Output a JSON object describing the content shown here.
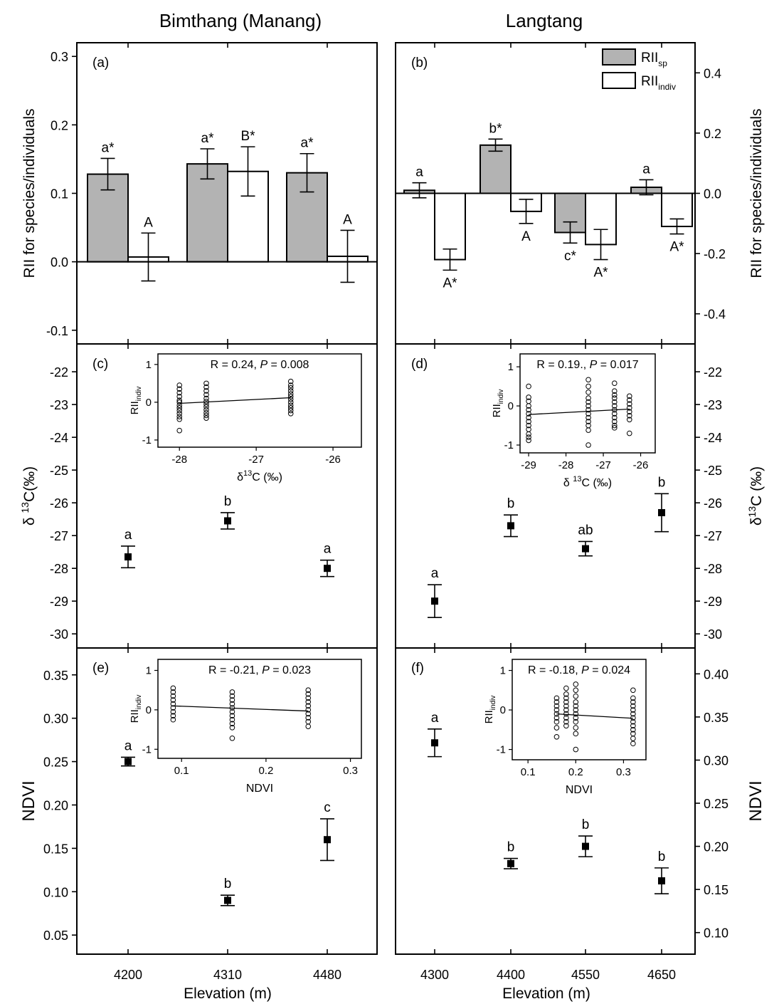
{
  "columns": {
    "left_title": "Bimthang (Manang)",
    "right_title": "Langtang"
  },
  "xlabel": "Elevation (m)",
  "legend": {
    "sp": {
      "main": "RII",
      "sub": "sp"
    },
    "indiv": {
      "main": "RII",
      "sub": "indiv"
    },
    "sp_color": "#b3b3b3",
    "indiv_color": "#ffffff"
  },
  "chart_data": [
    {
      "panel": "(a)",
      "type": "bar",
      "ylabel": "RII for species/individuals",
      "ylim": [
        -0.12,
        0.32
      ],
      "yticks": [
        0.3,
        0.2,
        0.1,
        0.0,
        -0.1
      ],
      "ytick_labels": [
        "0.3",
        "0.2",
        "0.1",
        "0.0",
        "-0.1"
      ],
      "categories": [
        "4200",
        "4310",
        "4480"
      ],
      "series": [
        {
          "name": "RII_sp",
          "values": [
            0.128,
            0.143,
            0.13
          ],
          "errors": [
            0.023,
            0.022,
            0.028
          ],
          "letters": [
            "a*",
            "a*",
            "a*"
          ]
        },
        {
          "name": "RII_indiv",
          "values": [
            0.007,
            0.132,
            0.008
          ],
          "errors": [
            0.035,
            0.036,
            0.038
          ],
          "letters": [
            "A",
            "B*",
            "A"
          ]
        }
      ]
    },
    {
      "panel": "(b)",
      "type": "bar",
      "ylabel": "RII for species/individuals",
      "ylim": [
        -0.5,
        0.5
      ],
      "yticks": [
        0.4,
        0.2,
        0.0,
        -0.2,
        -0.4
      ],
      "ytick_labels": [
        "0.4",
        "0.2",
        "0.0",
        "-0.2",
        "-0.4"
      ],
      "categories": [
        "4300",
        "4400",
        "4550",
        "4650"
      ],
      "series": [
        {
          "name": "RII_sp",
          "values": [
            0.01,
            0.16,
            -0.13,
            0.02
          ],
          "errors": [
            0.025,
            0.02,
            0.035,
            0.025
          ],
          "letters": [
            "a",
            "b*",
            "c*",
            "a"
          ]
        },
        {
          "name": "RII_indiv",
          "values": [
            -0.22,
            -0.06,
            -0.17,
            -0.11
          ],
          "errors": [
            0.035,
            0.04,
            0.05,
            0.025
          ],
          "letters": [
            "A*",
            "A",
            "A*",
            "A*"
          ]
        }
      ]
    },
    {
      "panel": "(c)",
      "type": "scatter",
      "ylabel": {
        "pre": "δ ",
        "sup": "13",
        "post": "C(‰)"
      },
      "ylim": [
        -30.43,
        -21.15
      ],
      "yticks": [
        -22,
        -23,
        -24,
        -25,
        -26,
        -27,
        -28,
        -29,
        -30
      ],
      "ytick_labels": [
        "-22",
        "-23",
        "-24",
        "-25",
        "-26",
        "-27",
        "-28",
        "-29",
        "-30"
      ],
      "categories": [
        "4200",
        "4310",
        "4480"
      ],
      "values": [
        -27.65,
        -26.55,
        -28.0
      ],
      "errors": [
        0.33,
        0.25,
        0.25
      ],
      "letters": [
        "a",
        "b",
        "a"
      ],
      "inset": {
        "type": "scatter",
        "stat_r": "R = 0.24, ",
        "stat_p_italic": "P",
        "stat_p": " = 0.008",
        "ylabel": {
          "main": "RII",
          "sub": "indiv"
        },
        "xlabel": {
          "pre": "δ",
          "sup": "13",
          "post": "C (‰)"
        },
        "xlim": [
          -28.28,
          -25.63
        ],
        "ylim": [
          -1.19,
          1.28
        ],
        "xticks": [
          -28,
          -27,
          -26
        ],
        "xtick_labels": [
          "-28",
          "-27",
          "-26"
        ],
        "yticks": [
          1,
          0,
          -1
        ],
        "ytick_labels": [
          "1",
          "0",
          "-1"
        ],
        "groups": [
          {
            "x": -28.0,
            "y": [
              0.45,
              0.35,
              0.25,
              0.15,
              0.05,
              0.0,
              -0.08,
              -0.15,
              -0.22,
              -0.3,
              -0.38,
              -0.45,
              -0.75
            ]
          },
          {
            "x": -27.65,
            "y": [
              0.5,
              0.4,
              0.3,
              0.2,
              0.1,
              0.02,
              -0.05,
              -0.12,
              -0.2,
              -0.28,
              -0.35,
              -0.42
            ]
          },
          {
            "x": -26.55,
            "y": [
              0.55,
              0.45,
              0.38,
              0.3,
              0.22,
              0.15,
              0.08,
              0.0,
              -0.08,
              -0.15,
              -0.22,
              -0.3
            ]
          }
        ],
        "fit": {
          "x": [
            -28.0,
            -26.55
          ],
          "y": [
            -0.03,
            0.12
          ]
        }
      }
    },
    {
      "panel": "(d)",
      "type": "scatter",
      "ylabel": {
        "pre": "δ",
        "sup": "13",
        "post": "C (‰)"
      },
      "ylim": [
        -30.43,
        -21.15
      ],
      "yticks": [
        -22,
        -23,
        -24,
        -25,
        -26,
        -27,
        -28,
        -29,
        -30
      ],
      "ytick_labels": [
        "-22",
        "-23",
        "-24",
        "-25",
        "-26",
        "-27",
        "-28",
        "-29",
        "-30"
      ],
      "categories": [
        "4300",
        "4400",
        "4550",
        "4650"
      ],
      "values": [
        -29.0,
        -26.7,
        -27.4,
        -26.3
      ],
      "errors": [
        0.5,
        0.33,
        0.22,
        0.58
      ],
      "letters": [
        "a",
        "b",
        "ab",
        "b"
      ],
      "inset": {
        "type": "scatter",
        "stat_r": "R = 0.19., ",
        "stat_p_italic": "P",
        "stat_p": " = 0.017",
        "ylabel": {
          "main": "RII",
          "sub": "indiv"
        },
        "xlabel": {
          "pre": "δ ",
          "sup": "13",
          "post": "C (‰)"
        },
        "xlim": [
          -29.23,
          -25.61
        ],
        "ylim": [
          -1.2,
          1.33
        ],
        "xticks": [
          -29,
          -28,
          -27,
          -26
        ],
        "xtick_labels": [
          "-29",
          "-28",
          "-27",
          "-26"
        ],
        "yticks": [
          1,
          0,
          -1
        ],
        "ytick_labels": [
          "1",
          "0",
          "-1"
        ],
        "groups": [
          {
            "x": -29.0,
            "y": [
              0.5,
              0.22,
              0.12,
              0.0,
              -0.1,
              -0.2,
              -0.3,
              -0.4,
              -0.5,
              -0.6,
              -0.72,
              -0.8,
              -0.88
            ]
          },
          {
            "x": -27.4,
            "y": [
              0.67,
              0.5,
              0.35,
              0.2,
              0.1,
              0.0,
              -0.1,
              -0.2,
              -0.3,
              -0.4,
              -0.5,
              -0.62,
              -1.0
            ]
          },
          {
            "x": -26.7,
            "y": [
              0.58,
              0.38,
              0.28,
              0.2,
              0.1,
              0.0,
              -0.1,
              -0.2,
              -0.3,
              -0.4,
              -0.5,
              -0.56
            ]
          },
          {
            "x": -26.3,
            "y": [
              0.25,
              0.15,
              0.05,
              -0.05,
              -0.15,
              -0.25,
              -0.35,
              -0.7
            ]
          }
        ],
        "fit": {
          "x": [
            -29.0,
            -26.3
          ],
          "y": [
            -0.22,
            -0.08
          ]
        }
      }
    },
    {
      "panel": "(e)",
      "type": "scatter",
      "ylabel": "NDVI",
      "ylim": [
        0.028,
        0.381
      ],
      "yticks": [
        0.35,
        0.3,
        0.25,
        0.2,
        0.15,
        0.1,
        0.05
      ],
      "ytick_labels": [
        "0.35",
        "0.30",
        "0.25",
        "0.20",
        "0.15",
        "0.10",
        "0.05"
      ],
      "categories": [
        "4200",
        "4310",
        "4480"
      ],
      "values": [
        0.25,
        0.09,
        0.16
      ],
      "errors": [
        0.005,
        0.006,
        0.024
      ],
      "letters": [
        "a",
        "b",
        "c"
      ],
      "inset": {
        "type": "scatter",
        "stat_r": "R = -0.21, ",
        "stat_p_italic": "P",
        "stat_p": " = 0.023",
        "ylabel": {
          "main": "RII",
          "sub": "indiv"
        },
        "xlabel": {
          "pre": "NDVI",
          "sup": "",
          "post": ""
        },
        "xlim": [
          0.072,
          0.313
        ],
        "ylim": [
          -1.23,
          1.28
        ],
        "xticks": [
          0.1,
          0.2,
          0.3
        ],
        "xtick_labels": [
          "0.1",
          "0.2",
          "0.3"
        ],
        "yticks": [
          1,
          0,
          -1
        ],
        "ytick_labels": [
          "1",
          "0",
          "-1"
        ],
        "groups": [
          {
            "x": 0.09,
            "y": [
              0.55,
              0.45,
              0.35,
              0.25,
              0.15,
              0.05,
              -0.05,
              -0.15,
              -0.25
            ]
          },
          {
            "x": 0.16,
            "y": [
              0.45,
              0.35,
              0.25,
              0.15,
              0.05,
              -0.05,
              -0.15,
              -0.25,
              -0.35,
              -0.45,
              -0.72
            ]
          },
          {
            "x": 0.25,
            "y": [
              0.5,
              0.4,
              0.3,
              0.2,
              0.1,
              0.0,
              -0.1,
              -0.2,
              -0.3,
              -0.42
            ]
          }
        ],
        "fit": {
          "x": [
            0.09,
            0.25
          ],
          "y": [
            0.1,
            -0.03
          ]
        }
      }
    },
    {
      "panel": "(f)",
      "type": "scatter",
      "ylabel": "NDVI",
      "ylim": [
        0.075,
        0.43
      ],
      "yticks": [
        0.4,
        0.35,
        0.3,
        0.25,
        0.2,
        0.15,
        0.1
      ],
      "ytick_labels": [
        "0.40",
        "0.35",
        "0.30",
        "0.25",
        "0.20",
        "0.15",
        "0.10"
      ],
      "categories": [
        "4300",
        "4400",
        "4550",
        "4650"
      ],
      "values": [
        0.32,
        0.18,
        0.2,
        0.16
      ],
      "errors": [
        0.016,
        0.006,
        0.012,
        0.015
      ],
      "letters": [
        "a",
        "b",
        "b",
        "b"
      ],
      "inset": {
        "type": "scatter",
        "stat_r": "R = -0.18, ",
        "stat_p_italic": "P",
        "stat_p": " = 0.024",
        "ylabel": {
          "main": "RII",
          "sub": "indiv"
        },
        "xlabel": {
          "pre": "NDVI",
          "sup": "",
          "post": ""
        },
        "xlim": [
          0.067,
          0.347
        ],
        "ylim": [
          -1.26,
          1.28
        ],
        "xticks": [
          0.1,
          0.2,
          0.3
        ],
        "xtick_labels": [
          "0.1",
          "0.2",
          "0.3"
        ],
        "yticks": [
          1,
          0,
          -1
        ],
        "ytick_labels": [
          "1",
          "0",
          "-1"
        ],
        "groups": [
          {
            "x": 0.16,
            "y": [
              0.3,
              0.2,
              0.1,
              0.0,
              -0.1,
              -0.2,
              -0.3,
              -0.45,
              -0.68
            ]
          },
          {
            "x": 0.18,
            "y": [
              0.55,
              0.4,
              0.3,
              0.2,
              0.1,
              0.0,
              -0.1,
              -0.2,
              -0.3,
              -0.4
            ]
          },
          {
            "x": 0.2,
            "y": [
              0.65,
              0.5,
              0.35,
              0.2,
              0.1,
              0.0,
              -0.1,
              -0.2,
              -0.3,
              -0.45,
              -0.6,
              -1.0
            ]
          },
          {
            "x": 0.32,
            "y": [
              0.5,
              0.3,
              0.2,
              0.1,
              0.0,
              -0.1,
              -0.2,
              -0.3,
              -0.4,
              -0.5,
              -0.6,
              -0.72,
              -0.85
            ]
          }
        ],
        "fit": {
          "x": [
            0.16,
            0.32
          ],
          "y": [
            -0.1,
            -0.21
          ]
        }
      }
    }
  ]
}
